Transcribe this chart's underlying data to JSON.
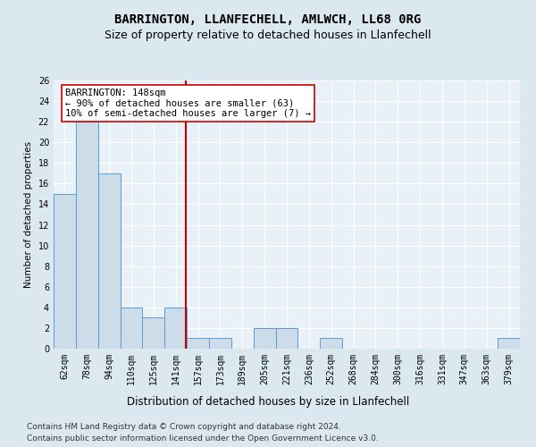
{
  "title": "BARRINGTON, LLANFECHELL, AMLWCH, LL68 0RG",
  "subtitle": "Size of property relative to detached houses in Llanfechell",
  "xlabel": "Distribution of detached houses by size in Llanfechell",
  "ylabel": "Number of detached properties",
  "categories": [
    "62sqm",
    "78sqm",
    "94sqm",
    "110sqm",
    "125sqm",
    "141sqm",
    "157sqm",
    "173sqm",
    "189sqm",
    "205sqm",
    "221sqm",
    "236sqm",
    "252sqm",
    "268sqm",
    "284sqm",
    "300sqm",
    "316sqm",
    "331sqm",
    "347sqm",
    "363sqm",
    "379sqm"
  ],
  "values": [
    15,
    22,
    17,
    4,
    3,
    4,
    1,
    1,
    0,
    2,
    2,
    0,
    1,
    0,
    0,
    0,
    0,
    0,
    0,
    0,
    1
  ],
  "bar_color": "#ccdce8",
  "bar_edge_color": "#5b9bd5",
  "vline_color": "#cc0000",
  "annotation_title": "BARRINGTON: 148sqm",
  "annotation_line1": "← 90% of detached houses are smaller (63)",
  "annotation_line2": "10% of semi-detached houses are larger (7) →",
  "annotation_box_color": "#ffffff",
  "annotation_box_edge": "#cc0000",
  "ylim": [
    0,
    26
  ],
  "yticks": [
    0,
    2,
    4,
    6,
    8,
    10,
    12,
    14,
    16,
    18,
    20,
    22,
    24,
    26
  ],
  "footer1": "Contains HM Land Registry data © Crown copyright and database right 2024.",
  "footer2": "Contains public sector information licensed under the Open Government Licence v3.0.",
  "bg_color": "#dce8f0",
  "plot_bg_color": "#e8f0f8",
  "title_fontsize": 10,
  "subtitle_fontsize": 9,
  "xlabel_fontsize": 8.5,
  "ylabel_fontsize": 7.5,
  "tick_fontsize": 7,
  "footer_fontsize": 6.5,
  "annotation_fontsize": 7.5
}
